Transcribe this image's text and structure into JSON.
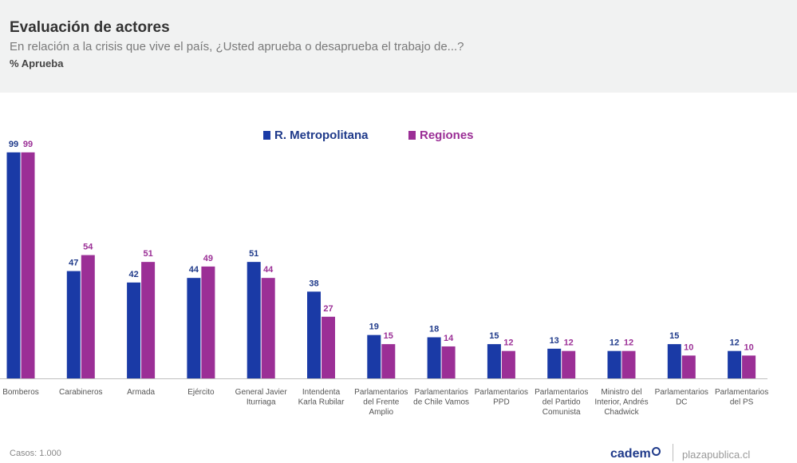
{
  "header": {
    "title": "Evaluación de actores",
    "subtitle": "En relación a la crisis que vive el país, ¿Usted aprueba o desaprueba el trabajo de...?",
    "measure": "% Aprueba"
  },
  "footer": {
    "cases": "Casos: 1.000",
    "brand": "cadem",
    "site": "plazapublica.cl"
  },
  "colors": {
    "metropolitana": "#1a3aa6",
    "regiones": "#9b2f96",
    "metropolitana_label": "#1f3a8a",
    "regiones_label": "#9b2f96"
  },
  "chart_data": {
    "type": "bar",
    "categories": [
      [
        "Bomberos"
      ],
      [
        "Carabineros"
      ],
      [
        "Armada"
      ],
      [
        "Ejército"
      ],
      [
        "General Javier",
        "Iturriaga"
      ],
      [
        "Intendenta",
        "Karla Rubilar"
      ],
      [
        "Parlamentarios",
        "del Frente",
        "Amplio"
      ],
      [
        "Parlamentarios",
        "de Chile Vamos"
      ],
      [
        "Parlamentarios",
        "PPD"
      ],
      [
        "Parlamentarios",
        "del Partido",
        "Comunista"
      ],
      [
        "Ministro del",
        "Interior, Andrés",
        "Chadwick"
      ],
      [
        "Parlamentarios",
        "DC"
      ],
      [
        "Parlamentarios",
        "del PS"
      ]
    ],
    "series": [
      {
        "name": "R. Metropolitana",
        "values": [
          99,
          47,
          42,
          44,
          51,
          38,
          19,
          18,
          15,
          13,
          12,
          15,
          12
        ]
      },
      {
        "name": "Regiones",
        "values": [
          99,
          54,
          51,
          49,
          44,
          27,
          15,
          14,
          12,
          12,
          12,
          10,
          10
        ]
      }
    ],
    "ylim": [
      0,
      100
    ],
    "legend": "top-center",
    "grid": false
  }
}
